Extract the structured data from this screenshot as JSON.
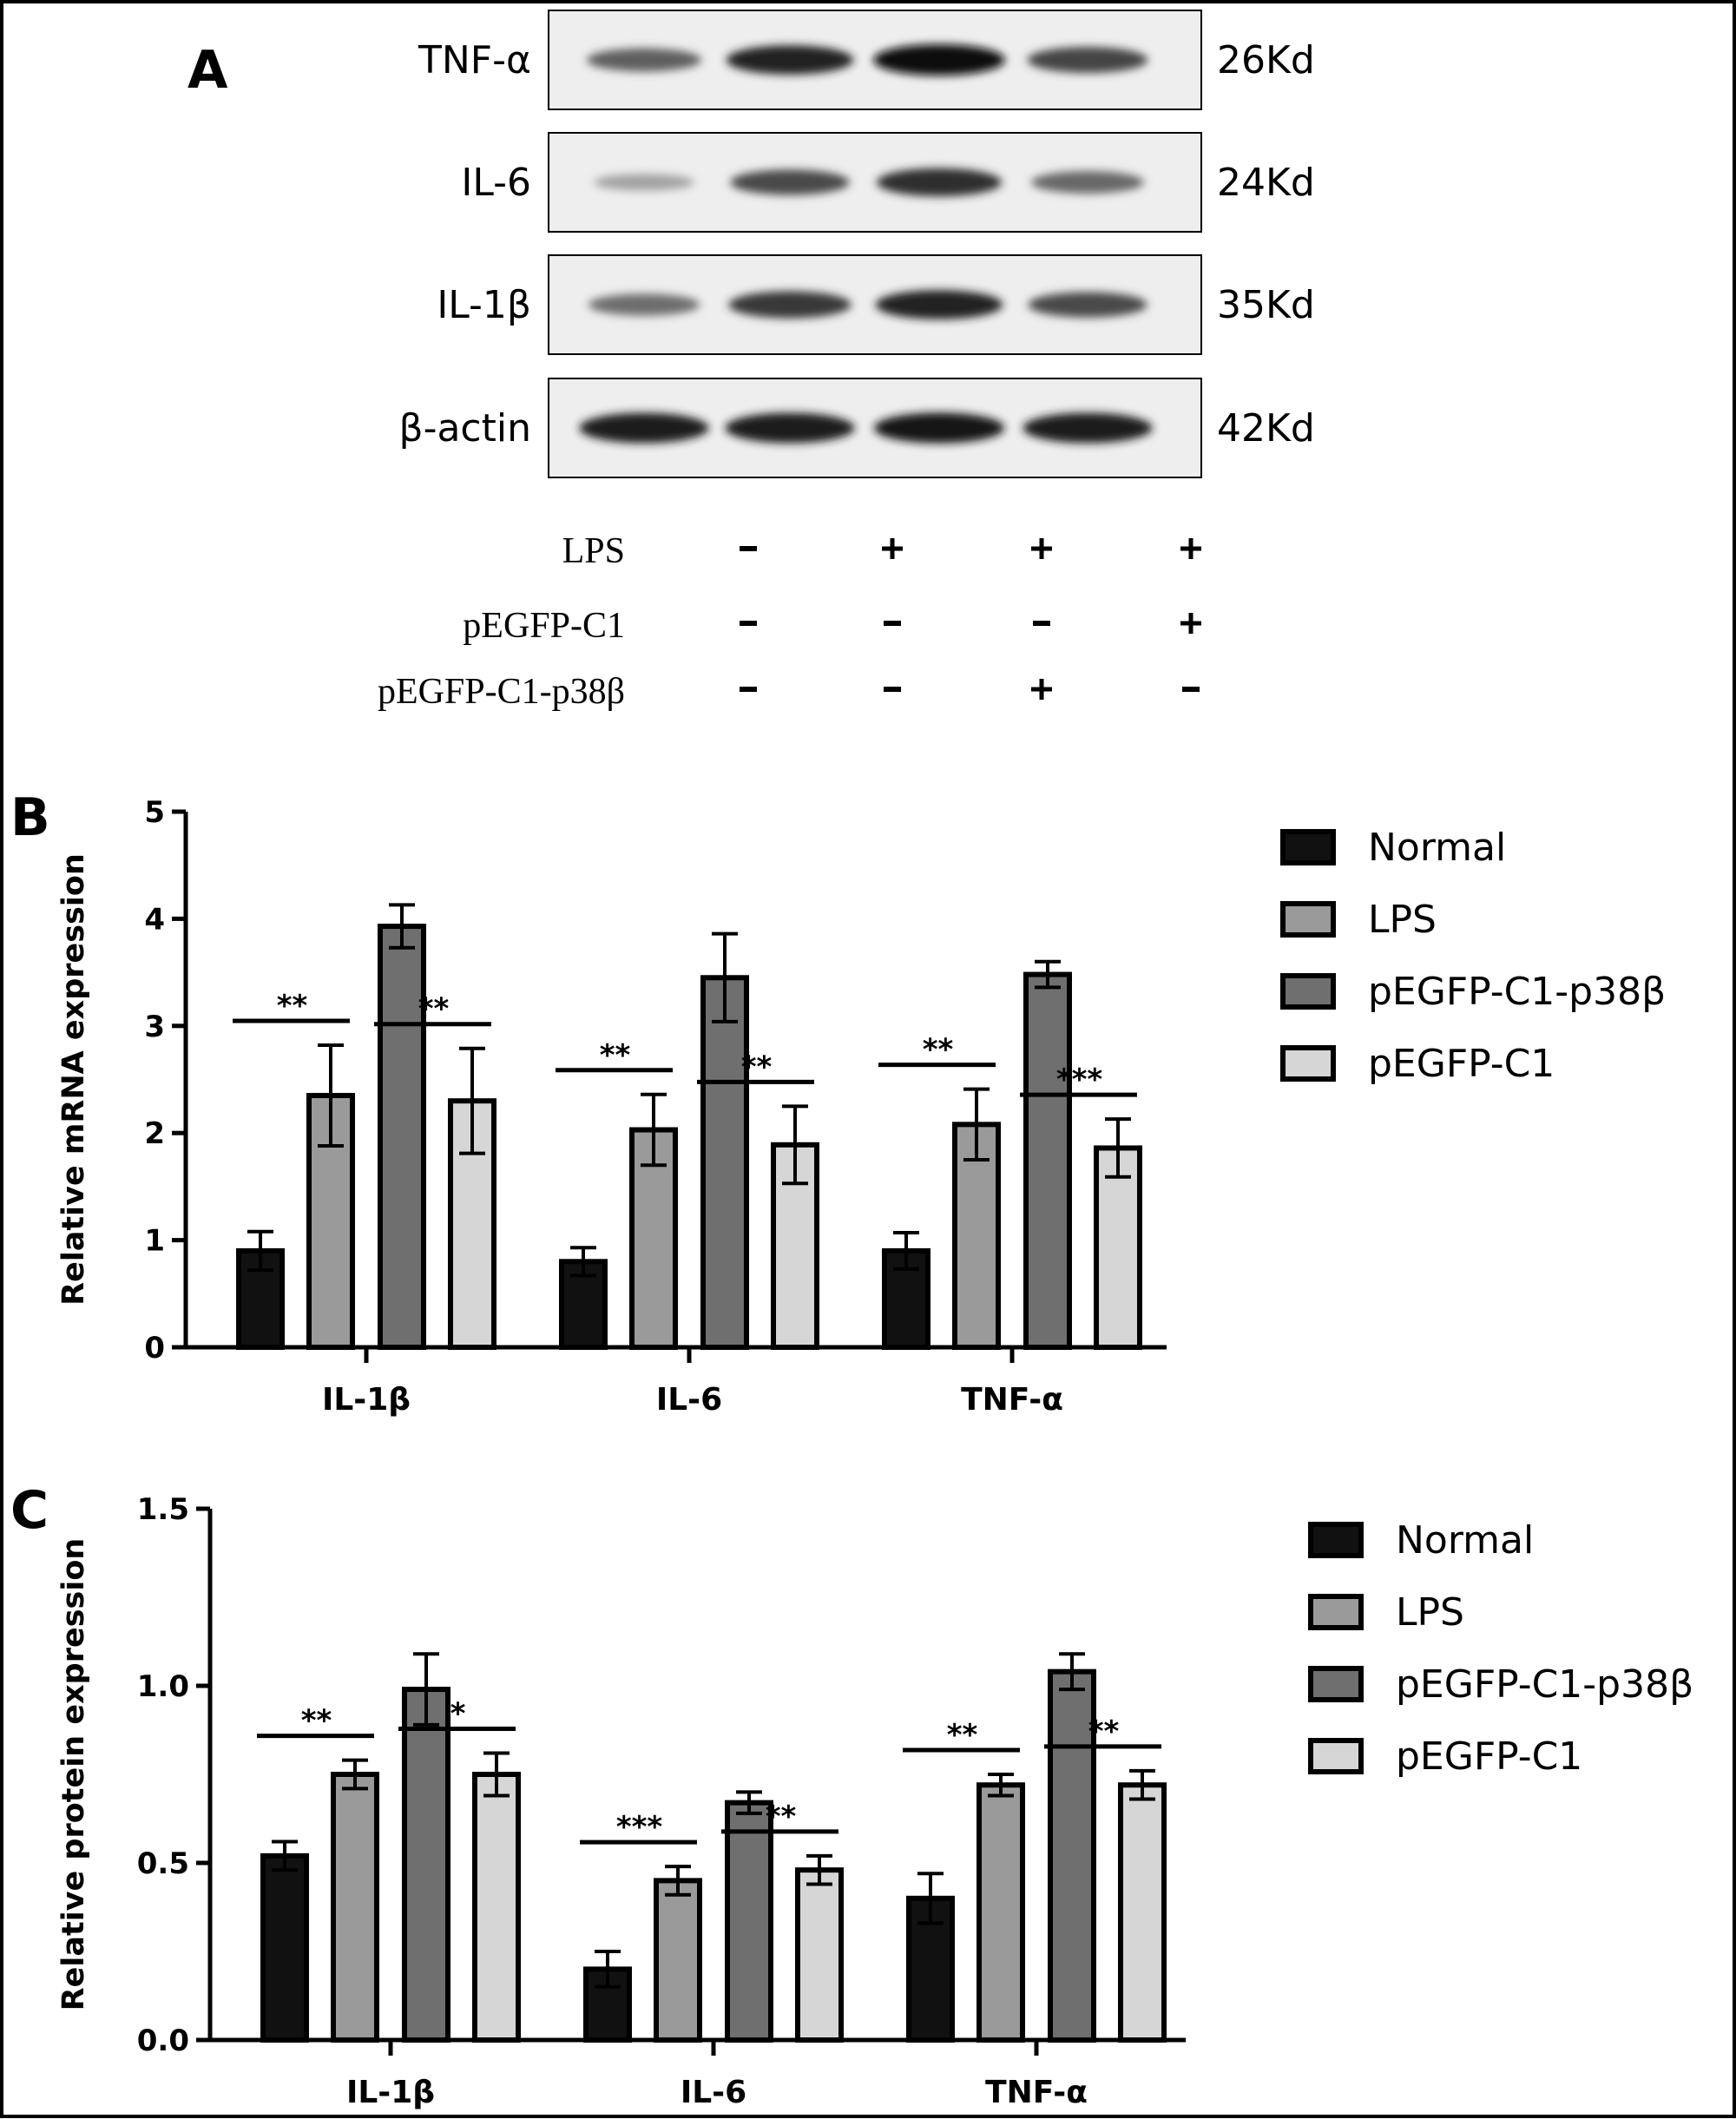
{
  "panels": {
    "a": "A",
    "b": "B",
    "c": "C"
  },
  "blot": {
    "rows": [
      {
        "name": "TNF-α",
        "kd": "26Kd",
        "intensity": [
          0.62,
          0.9,
          1.0,
          0.75
        ]
      },
      {
        "name": "IL-6",
        "kd": "24Kd",
        "intensity": [
          0.3,
          0.72,
          0.85,
          0.58
        ]
      },
      {
        "name": "IL-1β",
        "kd": "35Kd",
        "intensity": [
          0.55,
          0.8,
          0.9,
          0.72
        ]
      },
      {
        "name": "β-actin",
        "kd": "42Kd",
        "intensity": [
          0.95,
          0.95,
          0.97,
          0.95
        ]
      }
    ],
    "conditions": [
      {
        "name": "LPS",
        "signs": [
          "-",
          "+",
          "+",
          "+"
        ]
      },
      {
        "name": "pEGFP-C1",
        "signs": [
          "-",
          "-",
          "-",
          "+"
        ]
      },
      {
        "name": "pEGFP-C1-p38β",
        "signs": [
          "-",
          "-",
          "+",
          "-"
        ]
      }
    ]
  },
  "legend": [
    "Normal",
    "LPS",
    "pEGFP-C1-p38β",
    "pEGFP-C1"
  ],
  "colors": {
    "Normal": "#111111",
    "LPS": "#9a9a9a",
    "pEGFP-C1-p38β": "#6f6f6f",
    "pEGFP-C1": "#d6d6d6"
  },
  "chart_data": [
    {
      "type": "bar",
      "ylabel": "Relative mRNA expression",
      "ylim": [
        0,
        5
      ],
      "yticks": [
        "0",
        "1",
        "2",
        "3",
        "4",
        "5"
      ],
      "categories": [
        "IL-1β",
        "IL-6",
        "TNF-α"
      ],
      "series": [
        {
          "name": "Normal",
          "values": [
            0.9,
            0.8,
            0.9
          ],
          "errors": [
            0.18,
            0.13,
            0.17
          ]
        },
        {
          "name": "LPS",
          "values": [
            2.35,
            2.03,
            2.08
          ],
          "errors": [
            0.47,
            0.33,
            0.33
          ]
        },
        {
          "name": "pEGFP-C1-p38β",
          "values": [
            3.93,
            3.45,
            3.48
          ],
          "errors": [
            0.2,
            0.41,
            0.12
          ]
        },
        {
          "name": "pEGFP-C1",
          "values": [
            2.3,
            1.89,
            1.86
          ],
          "errors": [
            0.49,
            0.36,
            0.27
          ]
        }
      ],
      "significance": [
        {
          "category": 0,
          "from": 0,
          "to": 1,
          "label": "**"
        },
        {
          "category": 0,
          "from": 2,
          "to": 3,
          "label": "**"
        },
        {
          "category": 1,
          "from": 0,
          "to": 1,
          "label": "**"
        },
        {
          "category": 1,
          "from": 2,
          "to": 3,
          "label": "**"
        },
        {
          "category": 2,
          "from": 0,
          "to": 1,
          "label": "**"
        },
        {
          "category": 2,
          "from": 2,
          "to": 3,
          "label": "***"
        }
      ]
    },
    {
      "type": "bar",
      "ylabel": "Relative protein expression",
      "ylim": [
        0,
        1.5
      ],
      "yticks": [
        "0.0",
        "0.5",
        "1.0",
        "1.5"
      ],
      "categories": [
        "IL-1β",
        "IL-6",
        "TNF-α"
      ],
      "series": [
        {
          "name": "Normal",
          "values": [
            0.52,
            0.2,
            0.4
          ],
          "errors": [
            0.04,
            0.05,
            0.07
          ]
        },
        {
          "name": "LPS",
          "values": [
            0.75,
            0.45,
            0.72
          ],
          "errors": [
            0.04,
            0.04,
            0.03
          ]
        },
        {
          "name": "pEGFP-C1-p38β",
          "values": [
            0.99,
            0.67,
            1.04
          ],
          "errors": [
            0.1,
            0.03,
            0.05
          ]
        },
        {
          "name": "pEGFP-C1",
          "values": [
            0.75,
            0.48,
            0.72
          ],
          "errors": [
            0.06,
            0.04,
            0.04
          ]
        }
      ],
      "significance": [
        {
          "category": 0,
          "from": 0,
          "to": 1,
          "label": "**"
        },
        {
          "category": 0,
          "from": 2,
          "to": 3,
          "label": "*"
        },
        {
          "category": 1,
          "from": 0,
          "to": 1,
          "label": "***"
        },
        {
          "category": 1,
          "from": 2,
          "to": 3,
          "label": "**"
        },
        {
          "category": 2,
          "from": 0,
          "to": 1,
          "label": "**"
        },
        {
          "category": 2,
          "from": 2,
          "to": 3,
          "label": "**"
        }
      ]
    }
  ]
}
